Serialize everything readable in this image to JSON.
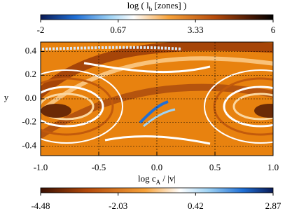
{
  "chart_data": [
    {
      "type": "colorbar",
      "label": [
        "log ( l",
        "b",
        " [zones] )"
      ],
      "xlim": [
        -2,
        6
      ],
      "xticks": [
        -2,
        0.67,
        3.33,
        6
      ],
      "position": "top"
    },
    {
      "type": "image",
      "ylabel": "y",
      "xlim": [
        -1.0,
        1.0
      ],
      "ylim": [
        -0.48,
        0.48
      ],
      "xticks": [
        {
          "value": -1.0,
          "label": "-1.0"
        },
        -0.5,
        {
          "value": 0.0,
          "label": "0.0"
        },
        0.5,
        {
          "value": 1.0,
          "label": "1.0"
        }
      ],
      "yticks": [
        0.4,
        0.2,
        {
          "value": 0.0,
          "label": "0.0"
        },
        -0.2,
        -0.4
      ],
      "grid": true
    },
    {
      "type": "colorbar",
      "label": [
        "log c",
        "A",
        " / |v|"
      ],
      "xlim": [
        -4.48,
        2.87
      ],
      "xticks": [
        -4.48,
        -2.03,
        0.42,
        2.87
      ],
      "position": "bottom"
    }
  ]
}
